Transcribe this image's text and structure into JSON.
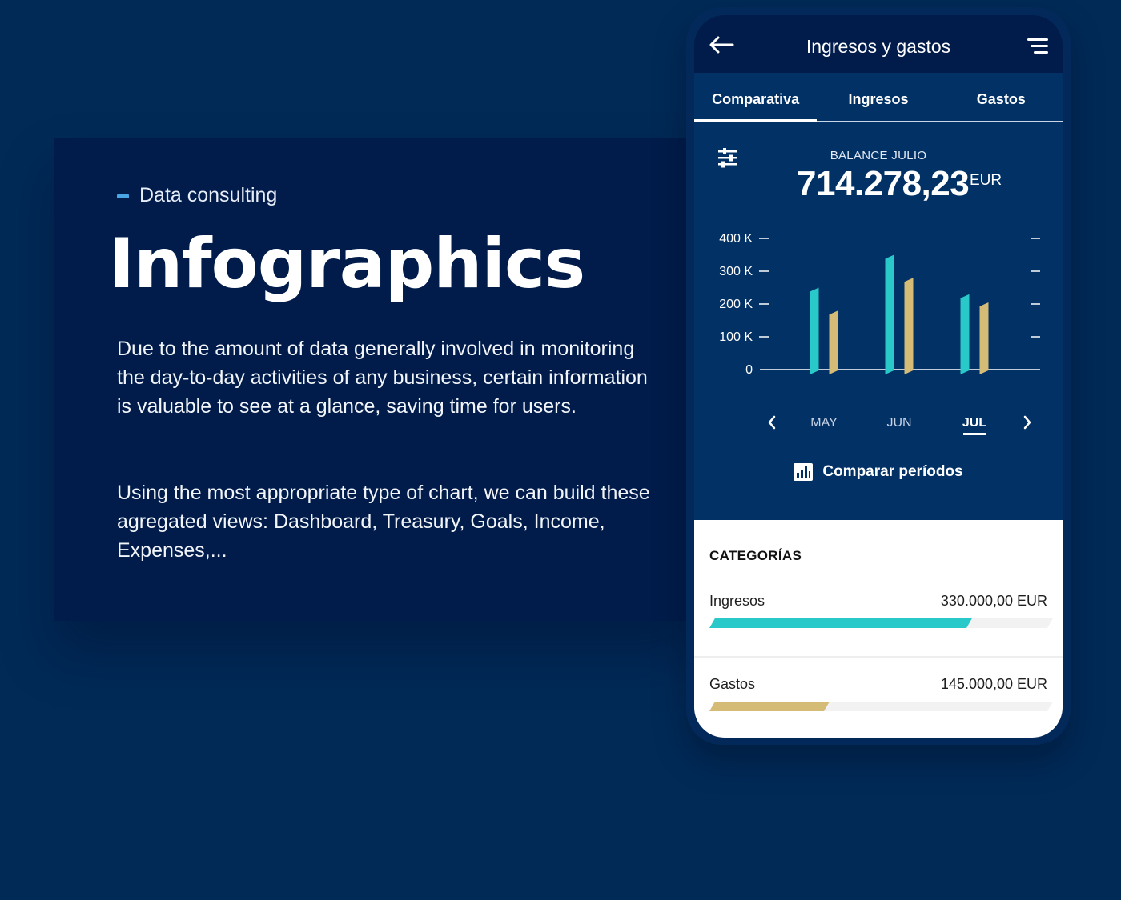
{
  "intro": {
    "eyebrow": "Data consulting",
    "title": "Infographics",
    "paragraph_1": "Due to the amount of data generally involved in monitoring the day-to-day activities of any business, certain information is valuable to see at a glance, saving time for users.",
    "paragraph_2": "Using the most appropriate type of chart, we can build these agregated views: Dashboard, Treasury, Goals, Income, Expenses,...",
    "accent_color": "#49a5e6"
  },
  "app": {
    "title": "Ingresos y gastos",
    "back_icon": "arrow-left-icon",
    "menu_icon": "menu-icon",
    "tabs": [
      {
        "label": "Comparativa",
        "active": true
      },
      {
        "label": "Ingresos",
        "active": false
      },
      {
        "label": "Gastos",
        "active": false
      }
    ],
    "balance": {
      "label": "BALANCE JULIO",
      "value": "714.278,23",
      "currency": "EUR"
    },
    "compare_label": "Comparar períodos",
    "categories": {
      "title": "CATEGORÍAS",
      "items": [
        {
          "name": "Ingresos",
          "amount": "330.000,00 EUR",
          "fraction": 0.76,
          "color": "#2ac9c9"
        },
        {
          "name": "Gastos",
          "amount": "145.000,00 EUR",
          "fraction": 0.34,
          "color": "#d4bb76"
        }
      ]
    }
  },
  "chart_data": {
    "type": "bar",
    "categories": [
      "MAY",
      "JUN",
      "JUL"
    ],
    "selected_category": "JUL",
    "series": [
      {
        "values": [
          250000,
          350000,
          230000
        ],
        "color": "#2ac9c9"
      },
      {
        "values": [
          180000,
          280000,
          205000
        ],
        "color": "#d4bb76"
      }
    ],
    "y_ticks": [
      "400 K",
      "300 K",
      "200 K",
      "100 K",
      "0"
    ],
    "y_tick_values": [
      400000,
      300000,
      200000,
      100000,
      0
    ],
    "ylim": [
      0,
      400000
    ]
  }
}
